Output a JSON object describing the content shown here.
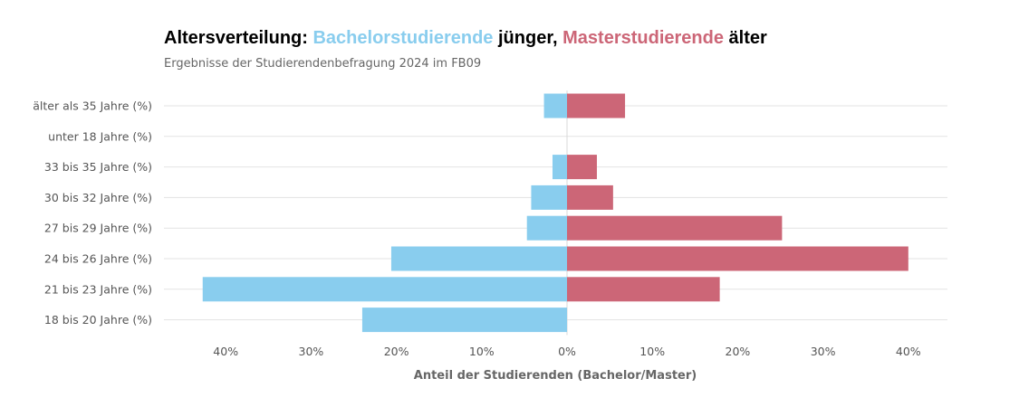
{
  "chart_data": {
    "type": "bar",
    "orientation": "horizontal-diverging",
    "title": {
      "part1": "Altersverteilung: ",
      "bachelor": "Bachelorstudierende",
      "part2": " jünger, ",
      "master": "Masterstudierende",
      "part3": " älter"
    },
    "subtitle": "Ergebnisse der Studierendenbefragung 2024 im FB09",
    "xlabel": "Anteil der Studierenden (Bachelor/Master)",
    "xlim": [
      -47,
      45
    ],
    "xticks": [
      {
        "value": -40,
        "label": "40%"
      },
      {
        "value": -30,
        "label": "30%"
      },
      {
        "value": -20,
        "label": "20%"
      },
      {
        "value": -10,
        "label": "10%"
      },
      {
        "value": 0,
        "label": "0%"
      },
      {
        "value": 10,
        "label": "10%"
      },
      {
        "value": 20,
        "label": "20%"
      },
      {
        "value": 30,
        "label": "30%"
      },
      {
        "value": 40,
        "label": "40%"
      }
    ],
    "categories": [
      "älter als 35 Jahre (%)",
      "unter 18 Jahre (%)",
      "33 bis 35 Jahre (%)",
      "30 bis 32 Jahre (%)",
      "27 bis 29 Jahre (%)",
      "24 bis 26 Jahre (%)",
      "21 bis 23 Jahre (%)",
      "18 bis 20 Jahre (%)"
    ],
    "series": [
      {
        "name": "Bachelorstudierende",
        "color": "#89CDEE",
        "direction": "left",
        "values": [
          2.7,
          0,
          1.7,
          4.2,
          4.7,
          20.6,
          42.7,
          24.0
        ]
      },
      {
        "name": "Masterstudierende",
        "color": "#CC6677",
        "direction": "right",
        "values": [
          6.8,
          0,
          3.5,
          5.4,
          25.2,
          40.0,
          17.9,
          0
        ]
      }
    ],
    "grid": true,
    "legend": "none (series named in title)"
  }
}
